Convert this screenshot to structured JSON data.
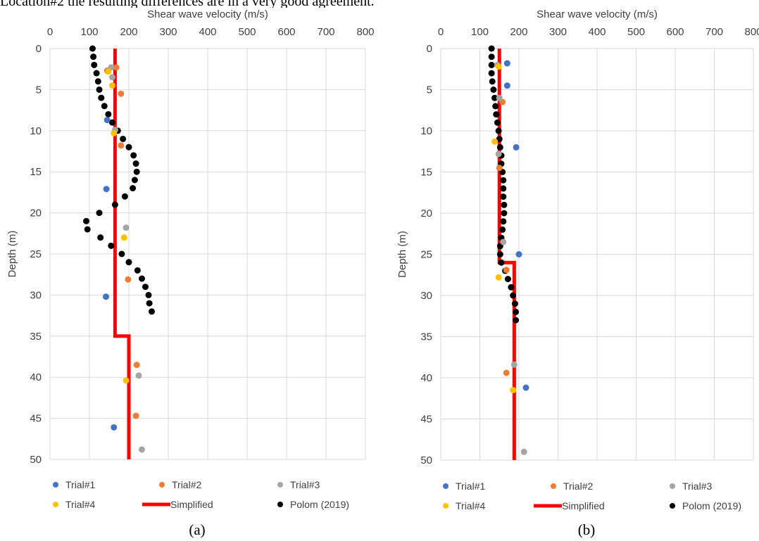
{
  "page_text": {
    "caption_line": "Location#2 the resulting differences are in a very good agreement."
  },
  "series_styles": [
    {
      "name": "Trial#1",
      "color": "#4472C4",
      "marker": "dot"
    },
    {
      "name": "Trial#2",
      "color": "#ED7D31",
      "marker": "dot"
    },
    {
      "name": "Trial#3",
      "color": "#A5A5A5",
      "marker": "dot"
    },
    {
      "name": "Trial#4",
      "color": "#FFC000",
      "marker": "dot"
    },
    {
      "name": "Simplified",
      "color": "#FF0000",
      "marker": "line"
    },
    {
      "name": "Polom (2019)",
      "color": "#000000",
      "marker": "dot"
    }
  ],
  "chart_data": [
    {
      "type": "scatter",
      "panel_label": "(a)",
      "title": "",
      "xlabel": "Shear wave velocity (m/s)",
      "ylabel": "Depth (m)",
      "xlim": [
        0,
        800
      ],
      "ylim": [
        0,
        50
      ],
      "y_reversed": true,
      "x_axis_position": "top",
      "x_ticks": [
        "0",
        "100",
        "200",
        "300",
        "400",
        "500",
        "600",
        "700",
        "800"
      ],
      "y_ticks": [
        "0",
        "5",
        "10",
        "15",
        "20",
        "25",
        "30",
        "35",
        "40",
        "45",
        "50"
      ],
      "grid": true,
      "legend_position": "bottom",
      "series": [
        {
          "name": "Trial#1",
          "type": "scatter",
          "points": [
            [
              145,
              8.7
            ],
            [
              143,
              17.1
            ],
            [
              142,
              30.2
            ],
            [
              162,
              46.1
            ]
          ]
        },
        {
          "name": "Trial#2",
          "type": "scatter",
          "points": [
            [
              168,
              2.3
            ],
            [
              145,
              2.7
            ],
            [
              180,
              5.5
            ],
            [
              180,
              11.8
            ],
            [
              198,
              28.1
            ],
            [
              220,
              38.5
            ],
            [
              218,
              44.7
            ]
          ]
        },
        {
          "name": "Trial#3",
          "type": "scatter",
          "points": [
            [
              155,
              2.3
            ],
            [
              158,
              3.5
            ],
            [
              165,
              9.9
            ],
            [
              193,
              21.8
            ],
            [
              225,
              39.8
            ],
            [
              233,
              48.8
            ]
          ]
        },
        {
          "name": "Trial#4",
          "type": "scatter",
          "points": [
            [
              148,
              2.8
            ],
            [
              158,
              4.5
            ],
            [
              162,
              10.3
            ],
            [
              188,
              23.0
            ],
            [
              193,
              40.4
            ]
          ]
        },
        {
          "name": "Simplified",
          "type": "line",
          "points": [
            [
              165,
              0
            ],
            [
              165,
              35
            ],
            [
              200,
              35
            ],
            [
              200,
              50
            ]
          ]
        },
        {
          "name": "Polom (2019)",
          "type": "scatter",
          "points": [
            [
              108,
              0
            ],
            [
              110,
              1
            ],
            [
              112,
              2
            ],
            [
              118,
              3
            ],
            [
              122,
              4
            ],
            [
              125,
              5
            ],
            [
              130,
              6
            ],
            [
              138,
              7
            ],
            [
              148,
              8
            ],
            [
              158,
              9
            ],
            [
              172,
              10
            ],
            [
              185,
              11
            ],
            [
              200,
              12
            ],
            [
              212,
              13
            ],
            [
              218,
              14
            ],
            [
              220,
              15
            ],
            [
              215,
              16
            ],
            [
              210,
              17
            ],
            [
              190,
              18
            ],
            [
              165,
              19
            ],
            [
              125,
              20
            ],
            [
              92,
              21
            ],
            [
              95,
              22
            ],
            [
              128,
              23
            ],
            [
              155,
              24
            ],
            [
              182,
              25
            ],
            [
              200,
              26
            ],
            [
              222,
              27
            ],
            [
              233,
              28
            ],
            [
              242,
              29
            ],
            [
              250,
              30
            ],
            [
              252,
              31
            ],
            [
              258,
              32
            ]
          ]
        }
      ]
    },
    {
      "type": "scatter",
      "panel_label": "(b)",
      "title": "",
      "xlabel": "Shear wave velocity (m/s)",
      "ylabel": "Depth (m)",
      "xlim": [
        0,
        800
      ],
      "ylim": [
        0,
        50
      ],
      "y_reversed": true,
      "x_axis_position": "top",
      "x_ticks": [
        "0",
        "100",
        "200",
        "300",
        "400",
        "500",
        "600",
        "700",
        "800"
      ],
      "y_ticks": [
        "0",
        "5",
        "10",
        "15",
        "20",
        "25",
        "30",
        "35",
        "40",
        "45",
        "50"
      ],
      "grid": true,
      "legend_position": "bottom",
      "series": [
        {
          "name": "Trial#1",
          "type": "scatter",
          "points": [
            [
              170,
              1.8
            ],
            [
              170,
              4.5
            ],
            [
              193,
              12.0
            ],
            [
              200,
              25.0
            ],
            [
              218,
              41.2
            ]
          ]
        },
        {
          "name": "Trial#2",
          "type": "scatter",
          "points": [
            [
              158,
              6.5
            ],
            [
              150,
              14.5
            ],
            [
              168,
              26.9
            ],
            [
              168,
              39.4
            ]
          ]
        },
        {
          "name": "Trial#3",
          "type": "scatter",
          "points": [
            [
              145,
              2.0
            ],
            [
              150,
              6.0
            ],
            [
              148,
              12.8
            ],
            [
              160,
              23.5
            ],
            [
              188,
              38.4
            ],
            [
              213,
              49.0
            ]
          ]
        },
        {
          "name": "Trial#4",
          "type": "scatter",
          "points": [
            [
              148,
              2.2
            ],
            [
              138,
              11.3
            ],
            [
              148,
              27.8
            ],
            [
              185,
              41.5
            ]
          ]
        },
        {
          "name": "Simplified",
          "type": "line",
          "points": [
            [
              150,
              0
            ],
            [
              150,
              26
            ],
            [
              188,
              26
            ],
            [
              188,
              50
            ]
          ]
        },
        {
          "name": "Polom (2019)",
          "type": "scatter",
          "points": [
            [
              130,
              0
            ],
            [
              130,
              1
            ],
            [
              130,
              2
            ],
            [
              130,
              3
            ],
            [
              132,
              4
            ],
            [
              135,
              5
            ],
            [
              138,
              6
            ],
            [
              140,
              7
            ],
            [
              142,
              8
            ],
            [
              145,
              9
            ],
            [
              148,
              10
            ],
            [
              150,
              11
            ],
            [
              152,
              12
            ],
            [
              155,
              13
            ],
            [
              155,
              14
            ],
            [
              158,
              15
            ],
            [
              160,
              16
            ],
            [
              160,
              17
            ],
            [
              160,
              18
            ],
            [
              162,
              19
            ],
            [
              162,
              20
            ],
            [
              160,
              21
            ],
            [
              158,
              22
            ],
            [
              155,
              23
            ],
            [
              152,
              24
            ],
            [
              152,
              25
            ],
            [
              155,
              26
            ],
            [
              165,
              27
            ],
            [
              172,
              28
            ],
            [
              180,
              29
            ],
            [
              185,
              30
            ],
            [
              190,
              31
            ],
            [
              192,
              32
            ],
            [
              192,
              33
            ]
          ]
        }
      ]
    }
  ]
}
